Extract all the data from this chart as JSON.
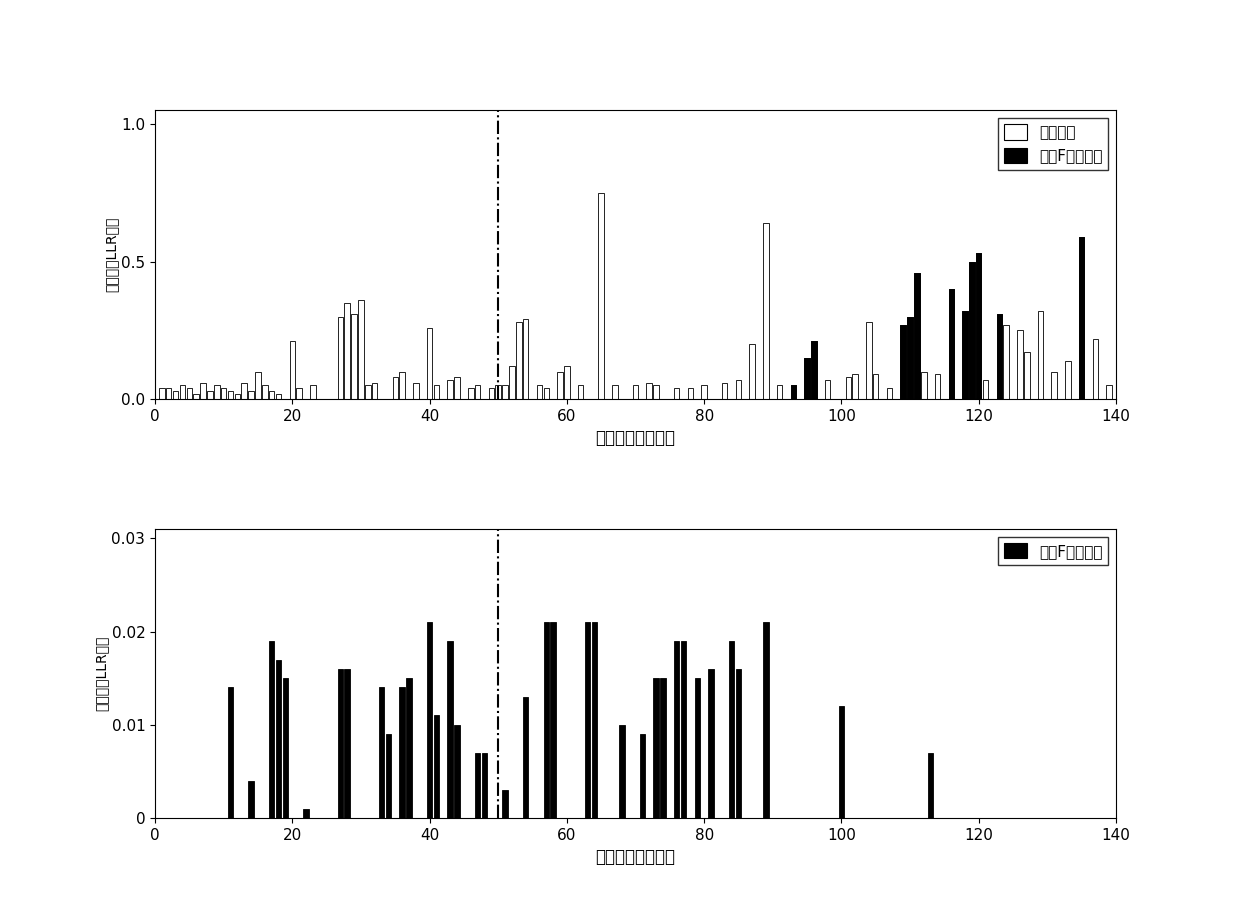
{
  "plot1": {
    "xlabel": "信息比特信道索引",
    "ylabel": "标准化的LLR均值",
    "xlim": [
      0,
      140
    ],
    "ylim": [
      0,
      1.05
    ],
    "yticks": [
      0,
      0.5,
      1
    ],
    "xticks": [
      0,
      20,
      40,
      60,
      80,
      100,
      120,
      140
    ],
    "vline_x": 50,
    "legend_labels": [
      "信息比特",
      "集合F中的比特"
    ],
    "bar_width": 0.8,
    "white_bars": [
      [
        1,
        0.04
      ],
      [
        2,
        0.04
      ],
      [
        3,
        0.03
      ],
      [
        4,
        0.05
      ],
      [
        5,
        0.04
      ],
      [
        6,
        0.02
      ],
      [
        7,
        0.06
      ],
      [
        8,
        0.03
      ],
      [
        9,
        0.05
      ],
      [
        10,
        0.04
      ],
      [
        11,
        0.03
      ],
      [
        12,
        0.02
      ],
      [
        13,
        0.06
      ],
      [
        14,
        0.03
      ],
      [
        15,
        0.1
      ],
      [
        16,
        0.05
      ],
      [
        17,
        0.03
      ],
      [
        18,
        0.02
      ],
      [
        20,
        0.21
      ],
      [
        21,
        0.04
      ],
      [
        23,
        0.05
      ],
      [
        27,
        0.3
      ],
      [
        28,
        0.35
      ],
      [
        29,
        0.31
      ],
      [
        30,
        0.36
      ],
      [
        31,
        0.05
      ],
      [
        32,
        0.06
      ],
      [
        35,
        0.08
      ],
      [
        36,
        0.1
      ],
      [
        38,
        0.06
      ],
      [
        40,
        0.26
      ],
      [
        41,
        0.05
      ],
      [
        43,
        0.07
      ],
      [
        44,
        0.08
      ],
      [
        46,
        0.04
      ],
      [
        47,
        0.05
      ],
      [
        49,
        0.04
      ],
      [
        50,
        0.05
      ],
      [
        51,
        0.05
      ],
      [
        52,
        0.12
      ],
      [
        53,
        0.28
      ],
      [
        54,
        0.29
      ],
      [
        56,
        0.05
      ],
      [
        57,
        0.04
      ],
      [
        59,
        0.1
      ],
      [
        60,
        0.12
      ],
      [
        62,
        0.05
      ],
      [
        65,
        0.75
      ],
      [
        67,
        0.05
      ],
      [
        70,
        0.05
      ],
      [
        72,
        0.06
      ],
      [
        73,
        0.05
      ],
      [
        76,
        0.04
      ],
      [
        78,
        0.04
      ],
      [
        80,
        0.05
      ],
      [
        83,
        0.06
      ],
      [
        85,
        0.07
      ],
      [
        87,
        0.2
      ],
      [
        89,
        0.64
      ],
      [
        91,
        0.05
      ],
      [
        93,
        0.05
      ],
      [
        95,
        0.15
      ],
      [
        96,
        0.21
      ],
      [
        98,
        0.07
      ],
      [
        101,
        0.08
      ],
      [
        102,
        0.09
      ],
      [
        104,
        0.28
      ],
      [
        105,
        0.09
      ],
      [
        107,
        0.04
      ],
      [
        109,
        0.27
      ],
      [
        110,
        0.3
      ],
      [
        111,
        0.46
      ],
      [
        112,
        0.1
      ],
      [
        114,
        0.09
      ],
      [
        116,
        0.4
      ],
      [
        118,
        0.32
      ],
      [
        119,
        0.5
      ],
      [
        120,
        0.53
      ],
      [
        121,
        0.07
      ],
      [
        123,
        0.31
      ],
      [
        124,
        0.27
      ],
      [
        126,
        0.25
      ],
      [
        127,
        0.17
      ],
      [
        129,
        0.32
      ],
      [
        131,
        0.1
      ],
      [
        133,
        0.14
      ],
      [
        135,
        0.59
      ],
      [
        137,
        0.22
      ],
      [
        139,
        0.05
      ]
    ],
    "black_bars": [
      [
        93,
        0.05
      ],
      [
        95,
        0.15
      ],
      [
        96,
        0.21
      ],
      [
        109,
        0.27
      ],
      [
        110,
        0.3
      ],
      [
        111,
        0.46
      ],
      [
        116,
        0.4
      ],
      [
        118,
        0.32
      ],
      [
        119,
        0.5
      ],
      [
        120,
        0.53
      ],
      [
        123,
        0.31
      ],
      [
        135,
        0.59
      ]
    ]
  },
  "plot2": {
    "xlabel": "信息比特信道索引",
    "ylabel": "标准化的LLR均值",
    "xlim": [
      0,
      140
    ],
    "ylim": [
      0,
      0.031
    ],
    "yticks": [
      0,
      0.01,
      0.02,
      0.03
    ],
    "ytick_labels": [
      "0",
      "0.01",
      "0.02",
      "0.03"
    ],
    "xticks": [
      0,
      20,
      40,
      60,
      80,
      100,
      120,
      140
    ],
    "vline_x": 50,
    "legend_labels": [
      "集合F中的比特"
    ],
    "bar_width": 0.8,
    "black_bars": [
      [
        11,
        0.014
      ],
      [
        14,
        0.004
      ],
      [
        17,
        0.019
      ],
      [
        18,
        0.017
      ],
      [
        19,
        0.015
      ],
      [
        22,
        0.001
      ],
      [
        27,
        0.016
      ],
      [
        28,
        0.016
      ],
      [
        33,
        0.014
      ],
      [
        34,
        0.009
      ],
      [
        36,
        0.014
      ],
      [
        37,
        0.015
      ],
      [
        40,
        0.021
      ],
      [
        41,
        0.011
      ],
      [
        43,
        0.019
      ],
      [
        44,
        0.01
      ],
      [
        47,
        0.007
      ],
      [
        48,
        0.007
      ],
      [
        51,
        0.003
      ],
      [
        54,
        0.013
      ],
      [
        57,
        0.021
      ],
      [
        58,
        0.021
      ],
      [
        63,
        0.021
      ],
      [
        64,
        0.021
      ],
      [
        68,
        0.01
      ],
      [
        71,
        0.009
      ],
      [
        73,
        0.015
      ],
      [
        74,
        0.015
      ],
      [
        76,
        0.019
      ],
      [
        77,
        0.019
      ],
      [
        79,
        0.015
      ],
      [
        81,
        0.016
      ],
      [
        84,
        0.019
      ],
      [
        85,
        0.016
      ],
      [
        89,
        0.021
      ],
      [
        100,
        0.012
      ],
      [
        113,
        0.007
      ]
    ]
  }
}
